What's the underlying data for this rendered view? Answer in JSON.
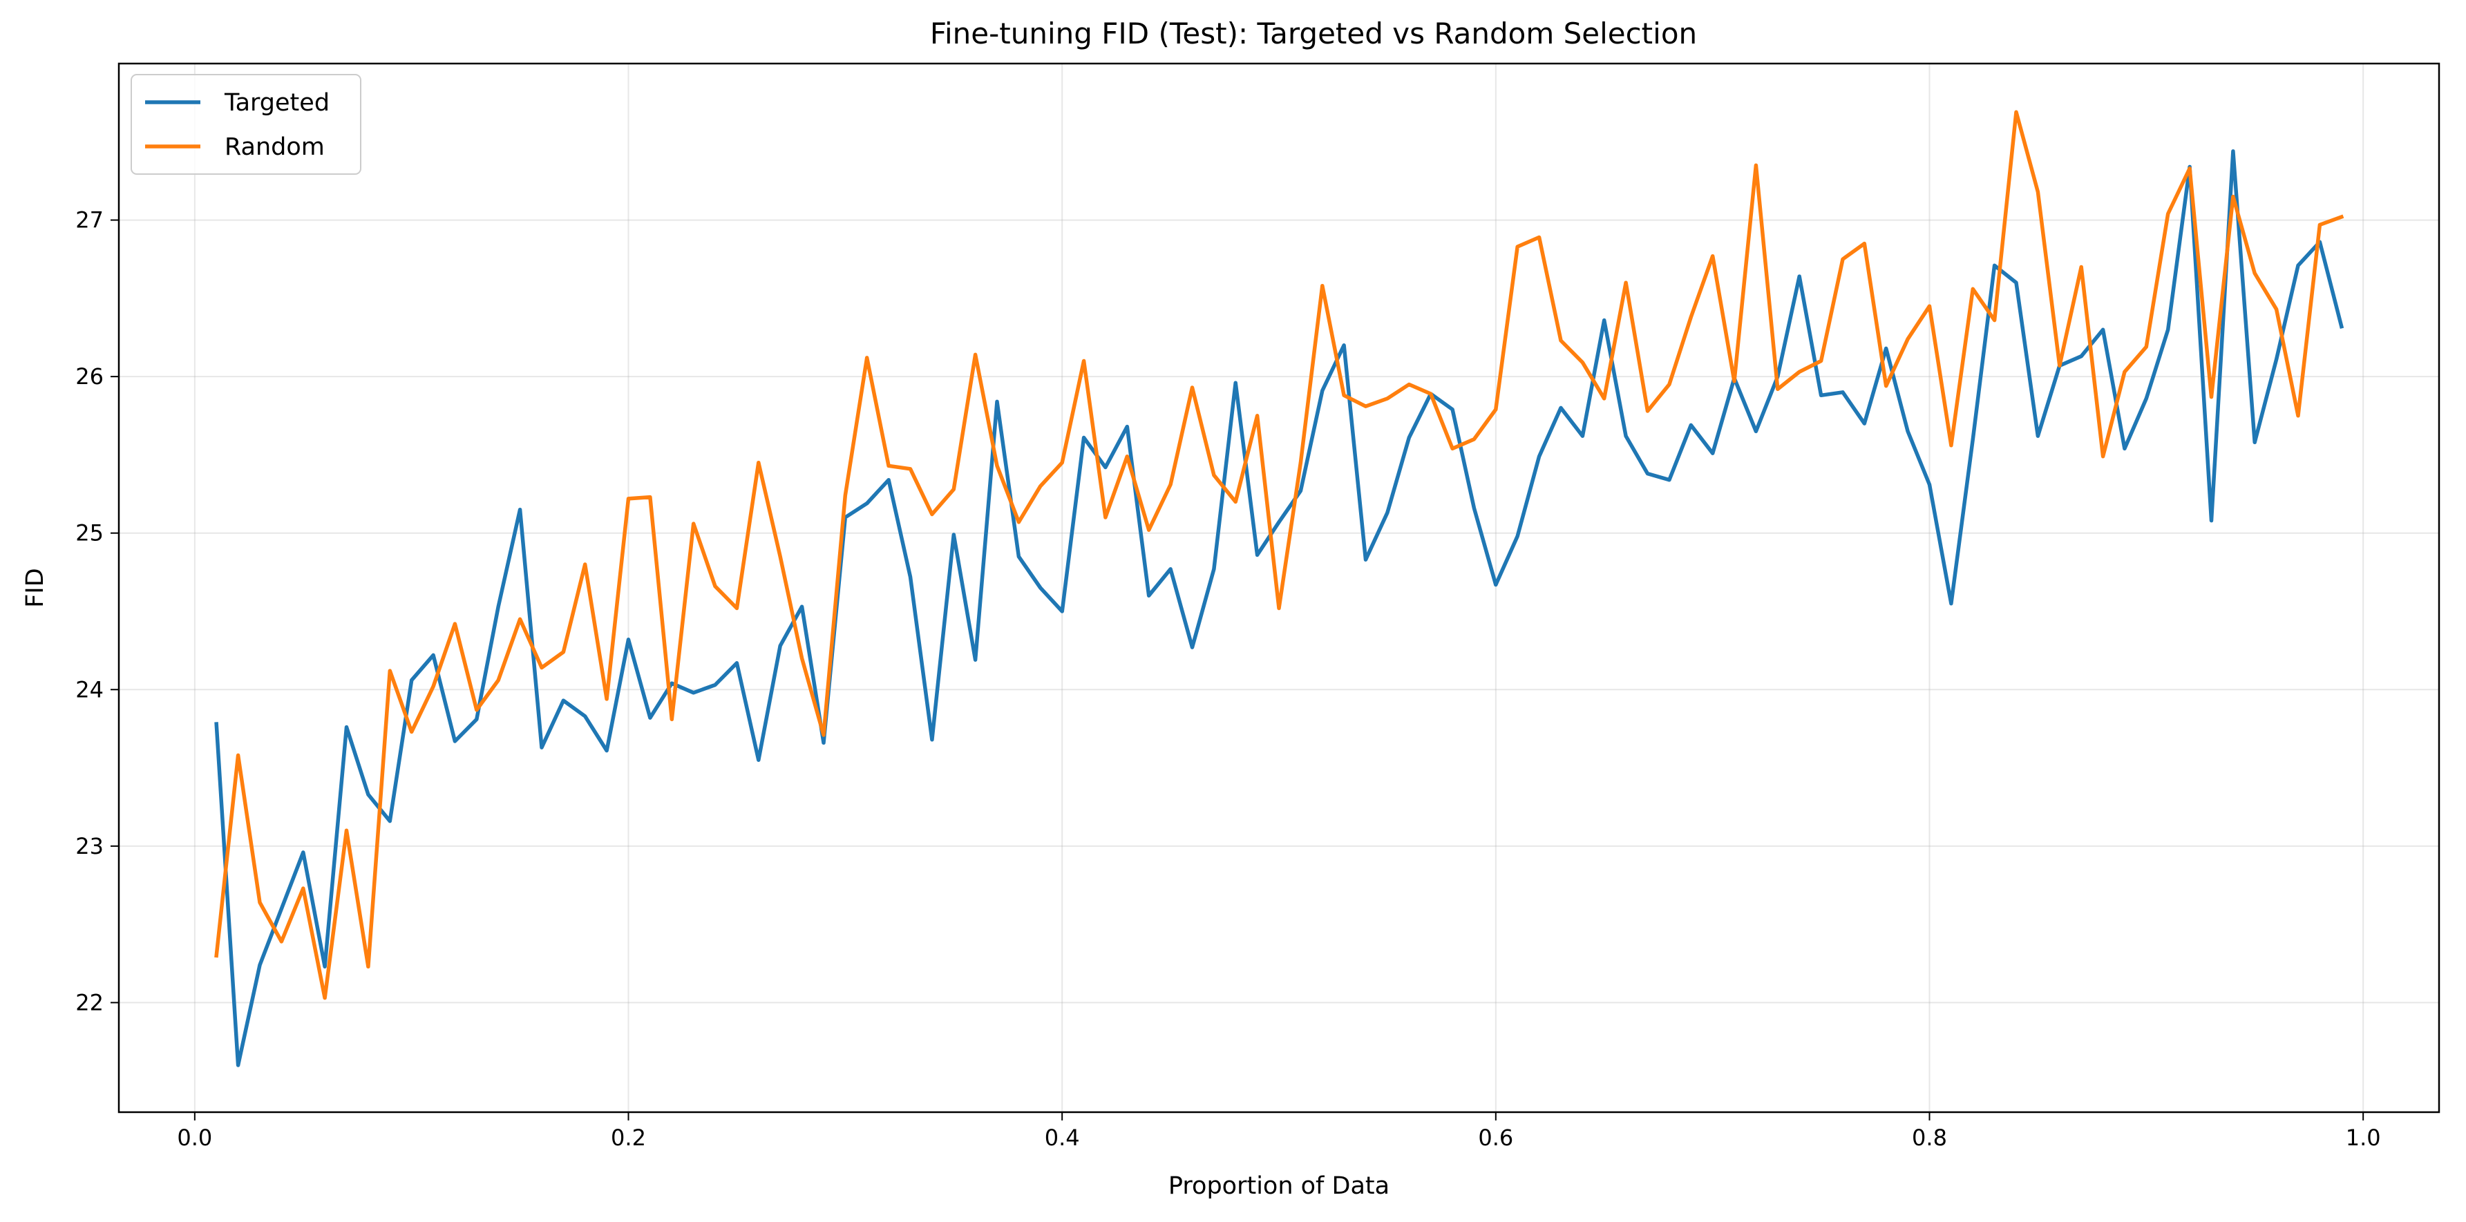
{
  "chart_data": {
    "type": "line",
    "title": "Fine-tuning FID (Test): Targeted vs Random Selection",
    "xlabel": "Proportion of Data",
    "ylabel": "FID",
    "xlim": [
      -0.035,
      1.035
    ],
    "ylim": [
      21.3,
      28.0
    ],
    "xticks": [
      0.0,
      0.2,
      0.4,
      0.6,
      0.8,
      1.0
    ],
    "xtick_labels": [
      "0.0",
      "0.2",
      "0.4",
      "0.6",
      "0.8",
      "1.0"
    ],
    "yticks": [
      22,
      23,
      24,
      25,
      26,
      27
    ],
    "ytick_labels": [
      "22",
      "23",
      "24",
      "25",
      "26",
      "27"
    ],
    "grid": true,
    "legend_position": "top-left",
    "x": [
      0.01,
      0.02,
      0.03,
      0.04,
      0.05,
      0.06,
      0.07,
      0.08,
      0.09,
      0.1,
      0.11,
      0.12,
      0.13,
      0.14,
      0.15,
      0.16,
      0.17,
      0.18,
      0.19,
      0.2,
      0.21,
      0.22,
      0.23,
      0.24,
      0.25,
      0.26,
      0.27,
      0.28,
      0.29,
      0.3,
      0.31,
      0.32,
      0.33,
      0.34,
      0.35,
      0.36,
      0.37,
      0.38,
      0.39,
      0.4,
      0.41,
      0.42,
      0.43,
      0.44,
      0.45,
      0.46,
      0.47,
      0.48,
      0.49,
      0.5,
      0.51,
      0.52,
      0.53,
      0.54,
      0.55,
      0.56,
      0.57,
      0.58,
      0.59,
      0.6,
      0.61,
      0.62,
      0.63,
      0.64,
      0.65,
      0.66,
      0.67,
      0.68,
      0.69,
      0.7,
      0.71,
      0.72,
      0.73,
      0.74,
      0.75,
      0.76,
      0.77,
      0.78,
      0.79,
      0.8,
      0.81,
      0.82,
      0.83,
      0.84,
      0.85,
      0.86,
      0.87,
      0.88,
      0.89,
      0.9,
      0.91,
      0.92,
      0.93,
      0.94,
      0.95,
      0.96,
      0.97,
      0.98,
      0.99
    ],
    "series": [
      {
        "name": "Targeted",
        "color": "#1f77b4",
        "values": [
          23.78,
          21.6,
          22.24,
          22.6,
          22.96,
          22.23,
          23.76,
          23.33,
          23.16,
          24.06,
          24.22,
          23.67,
          23.81,
          24.53,
          25.15,
          23.63,
          23.93,
          23.83,
          23.61,
          24.32,
          23.82,
          24.04,
          23.98,
          24.03,
          24.17,
          23.55,
          24.28,
          24.53,
          23.66,
          25.1,
          25.19,
          25.34,
          24.72,
          23.68,
          24.99,
          24.19,
          25.84,
          24.85,
          24.65,
          24.5,
          25.61,
          25.42,
          25.68,
          24.6,
          24.77,
          24.27,
          24.77,
          25.96,
          24.86,
          25.07,
          25.27,
          25.91,
          26.2,
          24.83,
          25.13,
          25.61,
          25.89,
          25.79,
          25.16,
          24.67,
          24.98,
          25.49,
          25.8,
          25.62,
          26.36,
          25.62,
          25.38,
          25.34,
          25.69,
          25.51,
          25.99,
          25.65,
          26.0,
          26.64,
          25.88,
          25.9,
          25.7,
          26.18,
          25.65,
          25.31,
          24.55,
          25.6,
          26.71,
          26.6,
          25.62,
          26.07,
          26.13,
          26.3,
          25.54,
          25.86,
          26.3,
          27.34,
          25.08,
          27.44,
          25.58,
          26.11,
          26.71,
          26.86,
          26.32
        ]
      },
      {
        "name": "Random",
        "color": "#ff7f0e",
        "values": [
          22.3,
          23.58,
          22.64,
          22.39,
          22.73,
          22.03,
          23.1,
          22.23,
          24.12,
          23.73,
          24.02,
          24.42,
          23.87,
          24.06,
          24.45,
          24.14,
          24.24,
          24.8,
          23.94,
          25.22,
          25.23,
          23.81,
          25.06,
          24.66,
          24.52,
          25.45,
          24.85,
          24.2,
          23.71,
          25.24,
          26.12,
          25.43,
          25.41,
          25.12,
          25.28,
          26.14,
          25.43,
          25.07,
          25.3,
          25.45,
          26.1,
          25.1,
          25.49,
          25.02,
          25.31,
          25.93,
          25.37,
          25.2,
          25.75,
          24.52,
          25.45,
          26.58,
          25.88,
          25.81,
          25.86,
          25.95,
          25.89,
          25.54,
          25.6,
          25.79,
          26.83,
          26.89,
          26.23,
          26.09,
          25.86,
          26.6,
          25.78,
          25.95,
          26.38,
          26.77,
          25.97,
          27.35,
          25.92,
          26.03,
          26.1,
          26.75,
          26.85,
          25.94,
          26.24,
          26.45,
          25.56,
          26.56,
          26.36,
          27.69,
          27.18,
          26.07,
          26.7,
          25.49,
          26.03,
          26.19,
          27.04,
          27.33,
          25.87,
          27.15,
          26.66,
          26.43,
          25.75,
          26.97,
          27.02
        ]
      }
    ]
  }
}
